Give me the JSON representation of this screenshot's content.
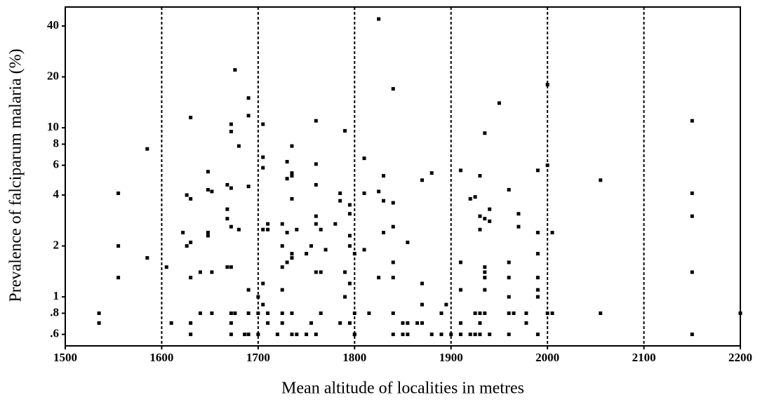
{
  "chart_data": {
    "type": "scatter",
    "xlabel": "Mean altitude of localities in metres",
    "ylabel": "Prevalence of falciparum malaria (%)",
    "xlim": [
      1500,
      2200
    ],
    "xticks": [
      1500,
      1600,
      1700,
      1800,
      1900,
      2000,
      2100,
      2200
    ],
    "ylim": [
      0.513,
      51.8
    ],
    "log_y": true,
    "yticks": [
      40,
      20,
      10,
      8,
      6,
      4,
      2,
      1,
      {
        "value": 0.8,
        "label": ".8"
      },
      {
        "value": 0.6,
        "label": ".6"
      }
    ],
    "xgrid": true,
    "grid_style": "dashed",
    "color": "#000000",
    "series": [
      {
        "color": "#000000",
        "x": [
          1535,
          1535,
          1555,
          1555,
          1555,
          1585,
          1585,
          1605,
          1610,
          1622,
          1626,
          1626,
          1630,
          1630,
          1630,
          1630,
          1630,
          1630,
          1640,
          1640,
          1648,
          1648,
          1648,
          1648,
          1652,
          1652,
          1652,
          1668,
          1668,
          1668,
          1668,
          1672,
          1672,
          1672,
          1672,
          1672,
          1672,
          1672,
          1672,
          1676,
          1676,
          1680,
          1680,
          1686,
          1690,
          1690,
          1690,
          1690,
          1690,
          1690,
          1700,
          1700,
          1700,
          1705,
          1705,
          1705,
          1705,
          1705,
          1705,
          1710,
          1710,
          1710,
          1710,
          1720,
          1725,
          1725,
          1725,
          1725,
          1725,
          1725,
          1730,
          1730,
          1730,
          1730,
          1735,
          1735,
          1735,
          1735,
          1735,
          1735,
          1735,
          1735,
          1740,
          1740,
          1750,
          1750,
          1755,
          1755,
          1760,
          1760,
          1760,
          1760,
          1760,
          1760,
          1760,
          1765,
          1765,
          1765,
          1770,
          1780,
          1785,
          1785,
          1785,
          1790,
          1790,
          1790,
          1795,
          1795,
          1795,
          1795,
          1795,
          1795,
          1800,
          1800,
          1800,
          1800,
          1810,
          1810,
          1810,
          1815,
          1825,
          1825,
          1825,
          1830,
          1830,
          1830,
          1840,
          1840,
          1840,
          1840,
          1840,
          1840,
          1840,
          1850,
          1850,
          1855,
          1855,
          1855,
          1865,
          1870,
          1870,
          1870,
          1870,
          1880,
          1880,
          1890,
          1890,
          1895,
          1900,
          1910,
          1910,
          1910,
          1910,
          1910,
          1920,
          1920,
          1925,
          1925,
          1925,
          1930,
          1930,
          1930,
          1930,
          1930,
          1930,
          1935,
          1935,
          1935,
          1935,
          1935,
          1935,
          1935,
          1940,
          1940,
          1940,
          1950,
          1960,
          1960,
          1960,
          1960,
          1960,
          1960,
          1965,
          1970,
          1970,
          1978,
          1978,
          1990,
          1990,
          1990,
          1990,
          1990,
          1990,
          1990,
          2000,
          2000,
          2000,
          2005,
          2005,
          2055,
          2055,
          2150,
          2150,
          2150,
          2150,
          2150,
          2200
        ],
        "values": [
          0.8,
          0.7,
          4.1,
          2.0,
          1.3,
          7.5,
          1.7,
          1.5,
          0.7,
          2.4,
          4.0,
          2.0,
          3.8,
          2.1,
          1.3,
          0.7,
          0.6,
          11.5,
          1.4,
          0.8,
          5.5,
          4.3,
          2.3,
          2.4,
          4.2,
          1.4,
          0.8,
          4.6,
          3.3,
          2.9,
          1.5,
          10.5,
          9.5,
          4.4,
          2.6,
          1.5,
          0.8,
          0.7,
          0.6,
          22,
          0.8,
          7.8,
          2.5,
          0.6,
          15,
          11.8,
          4.5,
          1.1,
          0.8,
          0.6,
          0.6,
          0.8,
          1.0,
          10.5,
          6.7,
          5.8,
          2.5,
          1.2,
          0.9,
          2.7,
          2.5,
          0.8,
          0.7,
          0.6,
          2.7,
          2.0,
          1.5,
          1.1,
          0.8,
          0.7,
          6.3,
          5.0,
          2.4,
          1.6,
          7.8,
          5.4,
          5.2,
          3.8,
          1.8,
          1.7,
          0.8,
          0.6,
          2.5,
          0.6,
          1.8,
          0.6,
          2.0,
          0.7,
          11,
          6.1,
          4.6,
          3.0,
          2.7,
          1.4,
          0.6,
          2.5,
          1.4,
          0.8,
          1.9,
          2.7,
          4.1,
          3.7,
          0.7,
          9.6,
          1.4,
          1.0,
          3.5,
          3.1,
          2.3,
          2.0,
          1.2,
          0.7,
          1.8,
          0.8,
          0.6,
          0.6,
          6.6,
          4.1,
          1.9,
          0.8,
          44,
          4.2,
          1.3,
          5.2,
          3.7,
          2.4,
          17,
          3.6,
          2.6,
          1.6,
          1.3,
          0.8,
          0.6,
          0.7,
          0.6,
          2.1,
          0.7,
          0.6,
          0.7,
          4.9,
          1.2,
          0.9,
          0.7,
          5.4,
          0.6,
          0.8,
          0.6,
          0.9,
          0.6,
          5.6,
          1.6,
          1.1,
          0.7,
          0.6,
          3.8,
          0.6,
          3.9,
          0.8,
          0.6,
          5.2,
          3.0,
          2.5,
          0.8,
          0.7,
          0.6,
          9.3,
          2.9,
          1.5,
          1.4,
          1.3,
          1.1,
          0.8,
          3.3,
          2.8,
          0.6,
          14,
          4.3,
          1.6,
          1.3,
          1.0,
          0.8,
          0.6,
          0.8,
          3.1,
          2.6,
          0.8,
          0.7,
          5.6,
          2.4,
          1.8,
          1.3,
          1.1,
          1.0,
          0.6,
          18,
          6.0,
          0.8,
          2.4,
          0.8,
          4.9,
          0.8,
          11,
          4.1,
          3.0,
          1.4,
          0.6,
          0.8
        ]
      }
    ]
  }
}
